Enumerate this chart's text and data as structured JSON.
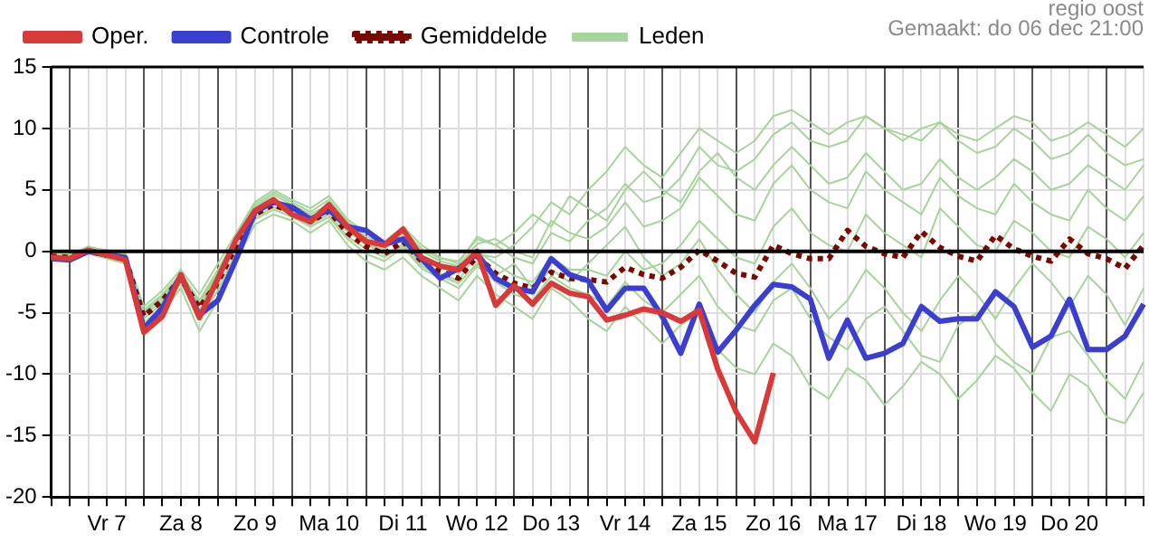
{
  "chart_data": {
    "type": "line",
    "annotations": [
      "regio oost",
      "Gemaakt: do 06 dec 21:00"
    ],
    "categories": [
      null,
      null,
      null,
      "Vr 7",
      null,
      null,
      null,
      "Za 8",
      null,
      null,
      null,
      "Zo 9",
      null,
      null,
      null,
      "Ma 10",
      null,
      null,
      null,
      "Di 11",
      null,
      null,
      null,
      "Wo 12",
      null,
      null,
      null,
      "Do 13",
      null,
      null,
      null,
      "Vr 14",
      null,
      null,
      null,
      "Za 15",
      null,
      null,
      null,
      "Zo 16",
      null,
      null,
      null,
      "Ma 17",
      null,
      null,
      null,
      "Di 18",
      null,
      null,
      null,
      "Wo 19",
      null,
      null,
      null,
      "Do 20",
      null,
      null,
      null,
      null
    ],
    "ylim": [
      -20,
      15
    ],
    "yticks": [
      -20,
      -15,
      -10,
      -5,
      0,
      5,
      10,
      15
    ],
    "grid": true,
    "legend": "top left",
    "marker": "none",
    "ref_lines": [
      {
        "axis": "y",
        "value": 0,
        "color": "#000000"
      }
    ],
    "series": [
      {
        "name": "Oper.",
        "color": "#d83a3a",
        "values": [
          -0.5,
          -0.6,
          0.1,
          -0.3,
          -0.7,
          -6.6,
          -5.3,
          -1.9,
          -5.4,
          -2.2,
          1.0,
          3.3,
          4.2,
          3.0,
          2.4,
          3.8,
          2.0,
          0.8,
          0.5,
          1.8,
          -0.5,
          -1.2,
          -1.5,
          0.0,
          -4.4,
          -2.8,
          -4.3,
          -2.6,
          -3.4,
          -3.7,
          -5.6,
          -5.2,
          -4.7,
          -5.0,
          -5.7,
          -4.8,
          -9.6,
          -13.1,
          -15.5,
          -9.9,
          null,
          null,
          null,
          null,
          null,
          null,
          null,
          null,
          null,
          null,
          null,
          null,
          null,
          null,
          null,
          null,
          null,
          null,
          null,
          null
        ]
      },
      {
        "name": "Controle",
        "color": "#3a3fd0",
        "values": [
          -0.6,
          -0.7,
          0.0,
          -0.3,
          -0.5,
          -6.3,
          -4.6,
          -2.0,
          -5.2,
          -4.0,
          -0.6,
          3.2,
          4.0,
          3.6,
          2.6,
          3.4,
          2.0,
          1.7,
          0.6,
          1.0,
          -0.6,
          -2.2,
          -1.4,
          -0.2,
          -2.2,
          -3.0,
          -3.3,
          -0.6,
          -1.9,
          -2.4,
          -4.8,
          -3.0,
          -3.0,
          -5.3,
          -8.3,
          -4.3,
          -8.2,
          -6.4,
          -4.4,
          -2.7,
          -2.9,
          -3.9,
          -8.7,
          -5.6,
          -8.7,
          -8.3,
          -7.5,
          -4.5,
          -5.7,
          -5.5,
          -5.5,
          -3.3,
          -4.5,
          -7.8,
          -6.9,
          -3.9,
          -8.0,
          -8.0,
          -6.9,
          -4.3
        ]
      },
      {
        "name": "Leden",
        "color": "#a6d49a",
        "values": [
          -0.3,
          -0.2,
          0.3,
          0.1,
          -0.2,
          -4.5,
          -3.2,
          -1.5,
          -3.5,
          -1.0,
          1.5,
          4.0,
          5.0,
          4.2,
          3.5,
          4.5,
          2.6,
          1.5,
          0.8,
          2.0,
          0.5,
          -0.5,
          -1.0,
          1.2,
          0.5,
          -0.5,
          -1.0,
          1.5,
          0.8,
          2.5,
          3.5,
          5.5,
          4.0,
          4.5,
          6.0,
          8.5,
          7.0,
          6.5,
          7.5,
          9.5,
          10.5,
          9.0,
          8.5,
          9.0,
          11.0,
          10.0,
          9.5,
          9.0,
          10.5,
          9.0,
          8.0,
          8.5,
          10.0,
          9.0,
          7.5,
          8.0,
          9.5,
          8.0,
          7.0,
          7.5
        ]
      },
      {
        "color": "#a6d49a",
        "values": [
          -0.6,
          -0.8,
          -0.2,
          -0.6,
          -1.0,
          -6.0,
          -5.0,
          -3.0,
          -6.5,
          -4.0,
          -0.8,
          2.2,
          3.0,
          2.5,
          1.5,
          2.5,
          0.5,
          -0.8,
          -1.5,
          -0.5,
          -2.0,
          -3.0,
          -4.0,
          -2.0,
          -3.5,
          -4.5,
          -5.5,
          -3.0,
          -4.0,
          -5.5,
          -6.5,
          -4.5,
          -6.0,
          -7.5,
          -6.0,
          -5.0,
          -8.0,
          -9.5,
          -10.0,
          -7.5,
          -8.5,
          -11.0,
          -12.0,
          -9.5,
          -10.5,
          -12.5,
          -11.0,
          -9.0,
          -10.0,
          -12.0,
          -10.5,
          -8.5,
          -9.5,
          -11.5,
          -13.0,
          -10.0,
          -11.0,
          -13.5,
          -14.0,
          -11.5
        ]
      },
      {
        "color": "#a6d49a",
        "values": [
          -0.4,
          -0.4,
          0.2,
          -0.2,
          -0.5,
          -5.0,
          -3.8,
          -2.0,
          -4.2,
          -2.0,
          1.0,
          3.4,
          4.2,
          3.5,
          2.8,
          3.6,
          1.8,
          0.5,
          0.2,
          1.2,
          -0.5,
          -1.2,
          -1.8,
          0.0,
          -1.0,
          -2.0,
          -2.5,
          -0.5,
          -1.5,
          -1.5,
          -2.0,
          0.0,
          -1.5,
          -1.0,
          0.5,
          2.5,
          1.0,
          -0.5,
          -1.0,
          2.0,
          3.5,
          1.5,
          0.5,
          0.0,
          3.0,
          1.5,
          0.5,
          -0.5,
          3.5,
          2.0,
          0.5,
          0.0,
          2.5,
          1.5,
          0.0,
          -0.5,
          2.0,
          1.0,
          -0.5,
          1.5
        ]
      },
      {
        "color": "#a6d49a",
        "values": [
          -0.5,
          -0.3,
          0.4,
          0.0,
          -0.4,
          -4.8,
          -3.5,
          -1.8,
          -4.0,
          -1.5,
          1.2,
          3.6,
          4.6,
          3.8,
          3.0,
          3.8,
          2.2,
          1.0,
          0.3,
          1.5,
          0.0,
          -0.8,
          -1.2,
          0.6,
          1.0,
          0.0,
          -0.5,
          2.5,
          1.5,
          1.0,
          2.0,
          4.0,
          2.0,
          2.5,
          3.5,
          6.0,
          4.5,
          3.0,
          2.5,
          5.5,
          7.0,
          5.0,
          4.0,
          3.5,
          6.5,
          5.0,
          4.0,
          3.0,
          6.0,
          4.5,
          3.5,
          3.0,
          5.5,
          4.0,
          3.0,
          2.5,
          5.0,
          3.5,
          2.5,
          4.5
        ]
      },
      {
        "color": "#a6d49a",
        "values": [
          -0.5,
          -0.6,
          -0.1,
          -0.4,
          -0.8,
          -5.8,
          -4.6,
          -2.6,
          -5.5,
          -3.2,
          0.0,
          2.6,
          3.4,
          2.8,
          2.0,
          2.8,
          1.0,
          -0.2,
          -0.8,
          0.3,
          -1.4,
          -2.2,
          -3.0,
          -1.2,
          -2.5,
          -3.5,
          -4.0,
          -2.0,
          -3.0,
          -3.5,
          -4.5,
          -2.5,
          -4.0,
          -5.0,
          -3.5,
          -2.0,
          -4.5,
          -6.0,
          -6.5,
          -4.0,
          -3.0,
          -5.5,
          -7.0,
          -8.0,
          -5.5,
          -4.5,
          -6.5,
          -8.5,
          -9.0,
          -6.0,
          -5.0,
          -7.5,
          -9.0,
          -10.0,
          -7.0,
          -6.5,
          -8.5,
          -10.5,
          -12.0,
          -9.0
        ]
      },
      {
        "color": "#a6d49a",
        "values": [
          -0.3,
          -0.5,
          0.1,
          -0.2,
          -0.6,
          -5.2,
          -4.0,
          -2.4,
          -4.8,
          -2.8,
          0.8,
          3.2,
          4.0,
          3.4,
          2.6,
          3.2,
          1.6,
          0.6,
          -0.3,
          0.6,
          -1.0,
          -1.8,
          -2.4,
          -0.2,
          -0.5,
          0.5,
          2.0,
          4.0,
          3.0,
          5.0,
          6.5,
          8.5,
          7.0,
          6.0,
          8.0,
          10.0,
          9.0,
          8.0,
          9.0,
          11.0,
          11.5,
          10.5,
          9.5,
          10.5,
          11.0,
          10.0,
          9.0,
          10.0,
          10.5,
          9.5,
          9.0,
          10.0,
          11.0,
          10.5,
          9.0,
          9.5,
          10.5,
          9.5,
          8.5,
          10.0
        ]
      },
      {
        "color": "#a6d49a",
        "values": [
          -0.5,
          -0.5,
          0.0,
          -0.4,
          -0.7,
          -5.5,
          -4.2,
          -2.1,
          -4.4,
          -2.2,
          0.3,
          2.8,
          3.6,
          3.0,
          2.2,
          3.0,
          1.2,
          0.2,
          -0.5,
          0.4,
          -1.2,
          -2.0,
          -2.6,
          -1.0,
          -2.0,
          -1.0,
          -3.0,
          -1.5,
          -2.5,
          -1.0,
          0.5,
          2.0,
          -0.5,
          -2.0,
          -1.0,
          1.0,
          -1.5,
          -3.5,
          -5.0,
          -2.5,
          -1.0,
          -3.0,
          -5.5,
          -4.0,
          -1.5,
          -3.0,
          -5.0,
          -6.5,
          -4.0,
          -2.0,
          -3.5,
          -5.5,
          -3.0,
          -1.0,
          -2.5,
          -4.5,
          -2.0,
          -3.5,
          -6.0,
          -3.0
        ]
      },
      {
        "color": "#a6d49a",
        "values": [
          -0.4,
          -0.3,
          0.2,
          0.0,
          -0.3,
          -5.0,
          -3.6,
          -1.9,
          -4.0,
          -1.8,
          1.3,
          3.8,
          4.8,
          4.0,
          3.2,
          4.2,
          2.4,
          1.2,
          0.6,
          1.8,
          0.2,
          -0.6,
          -0.8,
          1.0,
          0.5,
          1.5,
          3.0,
          2.0,
          4.5,
          3.5,
          2.5,
          5.0,
          6.5,
          5.0,
          4.0,
          6.5,
          8.0,
          6.0,
          5.0,
          7.0,
          8.5,
          7.0,
          5.5,
          6.0,
          8.0,
          6.5,
          5.0,
          5.5,
          7.5,
          6.0,
          5.0,
          6.0,
          7.5,
          6.5,
          5.0,
          5.5,
          7.0,
          6.0,
          5.0,
          7.0
        ]
      },
      {
        "name": "Gemiddelde",
        "color": "#7a0a00",
        "line_style": "dotted",
        "values": [
          -0.4,
          -0.5,
          0.0,
          -0.3,
          -0.6,
          -5.3,
          -4.0,
          -2.2,
          -4.6,
          -2.5,
          0.5,
          3.0,
          3.8,
          3.2,
          2.4,
          3.3,
          1.5,
          0.4,
          -0.2,
          0.8,
          -0.8,
          -1.6,
          -2.2,
          -0.4,
          -1.8,
          -2.6,
          -3.0,
          -1.7,
          -2.2,
          -2.3,
          -2.5,
          -1.3,
          -1.9,
          -2.2,
          -1.3,
          0.1,
          -0.8,
          -1.8,
          -2.1,
          0.5,
          -0.2,
          -0.6,
          -0.6,
          1.7,
          0.4,
          -0.2,
          -0.5,
          1.6,
          0.3,
          -0.4,
          -0.8,
          1.3,
          0.2,
          -0.4,
          -0.8,
          1.0,
          -0.2,
          -0.6,
          -1.4,
          0.5
        ]
      }
    ]
  }
}
